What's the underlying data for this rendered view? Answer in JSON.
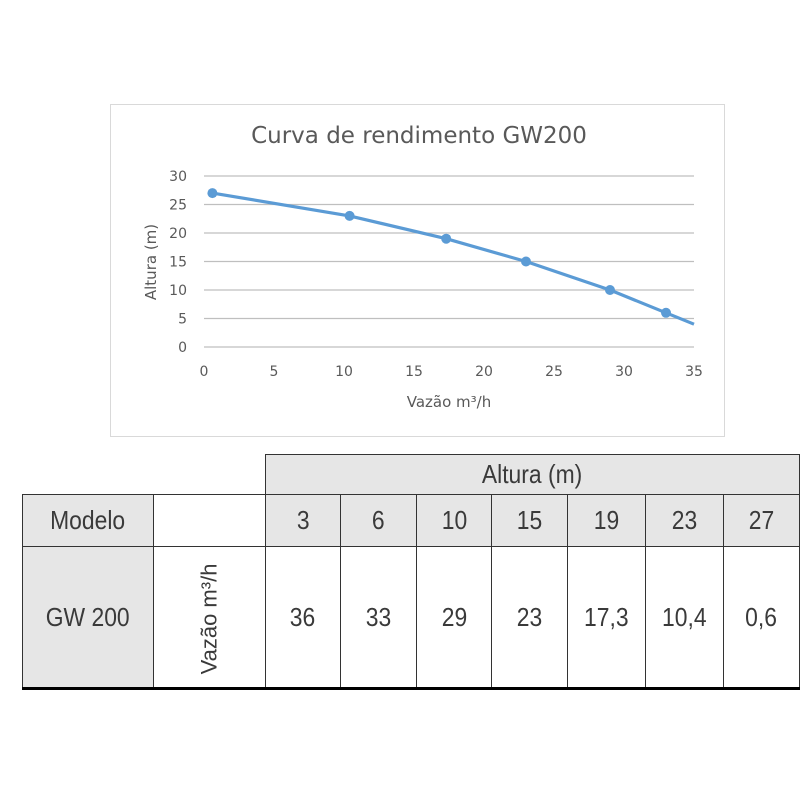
{
  "chart_data": {
    "type": "line",
    "title": "Curva de rendimento GW200",
    "xlabel": "Vazão m³/h",
    "ylabel": "Altura (m)",
    "xlim": [
      0,
      35
    ],
    "ylim": [
      0,
      30
    ],
    "x_ticks": [
      "0",
      "5",
      "10",
      "15",
      "20",
      "25",
      "30",
      "35"
    ],
    "y_ticks": [
      "0",
      "5",
      "10",
      "15",
      "20",
      "25",
      "30"
    ],
    "grid": "horizontal",
    "line_color": "#5b9bd5",
    "series": [
      {
        "x": [
          0.6,
          10.4,
          17.3,
          23,
          29,
          33,
          35
        ],
        "y": [
          27,
          23,
          19,
          15,
          10,
          6,
          4
        ],
        "markers": [
          true,
          true,
          true,
          true,
          true,
          true,
          false
        ]
      }
    ]
  },
  "table": {
    "group_header": "Altura (m)",
    "model_header": "Modelo",
    "altura_values": [
      "3",
      "6",
      "10",
      "15",
      "19",
      "23",
      "27"
    ],
    "row_label": "GW 200",
    "unit_label": "Vazão m³/h",
    "vazao_values": [
      "36",
      "33",
      "29",
      "23",
      "17,3",
      "10,4",
      "0,6"
    ]
  }
}
